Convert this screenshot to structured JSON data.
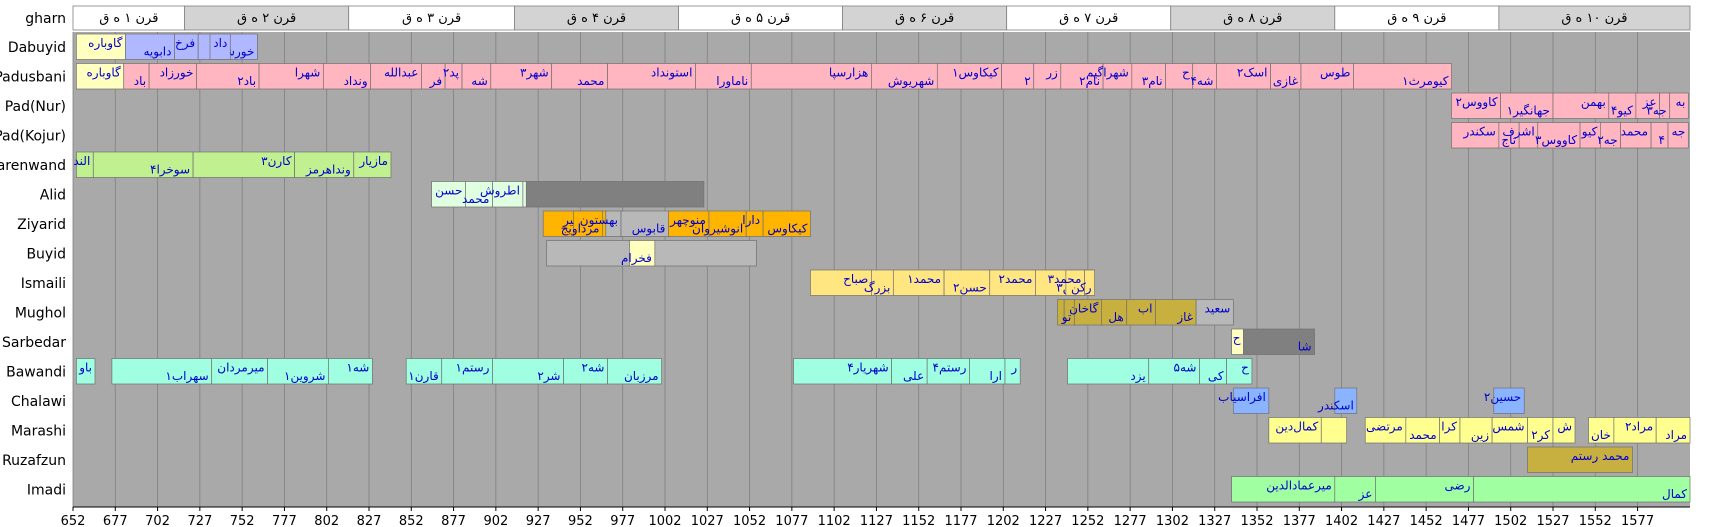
{
  "chart_data": {
    "type": "timeline",
    "title": "",
    "x_range": [
      652,
      1608
    ],
    "x_ticks": [
      652,
      677,
      702,
      727,
      752,
      777,
      802,
      827,
      852,
      877,
      902,
      927,
      952,
      977,
      1002,
      1027,
      1052,
      1077,
      1102,
      1127,
      1152,
      1177,
      1202,
      1227,
      1252,
      1277,
      1302,
      1327,
      1352,
      1377,
      1402,
      1427,
      1452,
      1477,
      1502,
      1527,
      1552,
      1577
    ],
    "header_row_label": "gharn",
    "centuries": [
      {
        "label": "قرن ۱ ه ق",
        "start": 652,
        "end": 718
      },
      {
        "label": "قرن ۲ ه ق",
        "start": 718,
        "end": 815
      },
      {
        "label": "قرن ۳ ه ق",
        "start": 815,
        "end": 913
      },
      {
        "label": "قرن ۴ ه ق",
        "start": 913,
        "end": 1010
      },
      {
        "label": "قرن ۵ ه ق",
        "start": 1010,
        "end": 1107
      },
      {
        "label": "قرن ۶ ه ق",
        "start": 1107,
        "end": 1204
      },
      {
        "label": "قرن ۷ ه ق",
        "start": 1204,
        "end": 1301
      },
      {
        "label": "قرن ۸ ه ق",
        "start": 1301,
        "end": 1398
      },
      {
        "label": "قرن ۹ ه ق",
        "start": 1398,
        "end": 1495
      },
      {
        "label": "قرن ۱۰ ه ق",
        "start": 1495,
        "end": 1608
      }
    ],
    "colors": {
      "background": "#a9a9a9",
      "header_light": "#ffffff",
      "header_dark": "#d3d3d3",
      "label_text": "#0000cd",
      "grid": "#808080"
    },
    "rows": [
      {
        "label": "Dabuyid",
        "color": "#b0b8ff",
        "segments": [
          {
            "start": 654,
            "end": 683,
            "label": "گاوباره",
            "color": "#ffffc0"
          },
          {
            "start": 683,
            "end": 712,
            "label": "دابویه"
          },
          {
            "start": 712,
            "end": 726,
            "label": "فرخ"
          },
          {
            "start": 726,
            "end": 761,
            "label": "خورشید"
          },
          {
            "start": 733,
            "end": 745,
            "label": "داد"
          }
        ]
      },
      {
        "label": "Padusbani",
        "color": "#ffb6c1",
        "segments": [
          {
            "start": 654,
            "end": 682,
            "label": "گاوباره",
            "color": "#ffffc0"
          },
          {
            "start": 682,
            "end": 697,
            "label": "باد"
          },
          {
            "start": 697,
            "end": 725,
            "label": "خورزاد"
          },
          {
            "start": 725,
            "end": 762,
            "label": "باد۲"
          },
          {
            "start": 762,
            "end": 800,
            "label": "شهرا"
          },
          {
            "start": 800,
            "end": 828,
            "label": "ونداد"
          },
          {
            "start": 828,
            "end": 858,
            "label": "عبدالله"
          },
          {
            "start": 858,
            "end": 872,
            "label": "فر"
          },
          {
            "start": 872,
            "end": 882,
            "label": "پد۲"
          },
          {
            "start": 882,
            "end": 899,
            "label": "شه"
          },
          {
            "start": 899,
            "end": 935,
            "label": "شهر۳"
          },
          {
            "start": 935,
            "end": 968,
            "label": "محمد"
          },
          {
            "start": 968,
            "end": 1020,
            "label": "استونداد"
          },
          {
            "start": 1020,
            "end": 1053,
            "label": "ناماورا"
          },
          {
            "start": 1053,
            "end": 1124,
            "label": "هزارسپا"
          },
          {
            "start": 1124,
            "end": 1163,
            "label": "شهریوش"
          },
          {
            "start": 1163,
            "end": 1201,
            "label": "کیکاوس۱"
          },
          {
            "start": 1201,
            "end": 1220,
            "label": "۲"
          },
          {
            "start": 1220,
            "end": 1236,
            "label": "زر"
          },
          {
            "start": 1236,
            "end": 1261,
            "label": "نام۲"
          },
          {
            "start": 1261,
            "end": 1278,
            "label": "شهراگیم"
          },
          {
            "start": 1278,
            "end": 1298,
            "label": "نام۳"
          },
          {
            "start": 1298,
            "end": 1314,
            "label": "ح"
          },
          {
            "start": 1314,
            "end": 1328,
            "label": "شه۴"
          },
          {
            "start": 1328,
            "end": 1360,
            "label": "اسک۲"
          },
          {
            "start": 1360,
            "end": 1378,
            "label": "غازی"
          },
          {
            "start": 1378,
            "end": 1409,
            "label": "طوس"
          },
          {
            "start": 1409,
            "end": 1467,
            "label": "کیومرث۱"
          }
        ]
      },
      {
        "label": "Pad(Nur)",
        "color": "#ffb6c1",
        "segments": [
          {
            "start": 1467,
            "end": 1496,
            "label": "کاووس۲"
          },
          {
            "start": 1496,
            "end": 1527,
            "label": "جهانگیر۱"
          },
          {
            "start": 1527,
            "end": 1560,
            "label": "بهمن"
          },
          {
            "start": 1560,
            "end": 1576,
            "label": "کیو۴"
          },
          {
            "start": 1576,
            "end": 1590,
            "label": "عز"
          },
          {
            "start": 1590,
            "end": 1596,
            "label": "جه۳"
          },
          {
            "start": 1596,
            "end": 1607,
            "label": "به"
          }
        ]
      },
      {
        "label": "Pad(Kojur)",
        "color": "#ffb6c1",
        "segments": [
          {
            "start": 1467,
            "end": 1495,
            "label": "سکندر"
          },
          {
            "start": 1495,
            "end": 1507,
            "label": "تاج"
          },
          {
            "start": 1507,
            "end": 1518,
            "label": "اشرف"
          },
          {
            "start": 1518,
            "end": 1543,
            "label": "کاووس۳"
          },
          {
            "start": 1543,
            "end": 1555,
            "label": "کیو"
          },
          {
            "start": 1555,
            "end": 1567,
            "label": "جه۲"
          },
          {
            "start": 1567,
            "end": 1585,
            "label": "محمد"
          },
          {
            "start": 1585,
            "end": 1595,
            "label": "۴"
          },
          {
            "start": 1595,
            "end": 1607,
            "label": "جه"
          }
        ]
      },
      {
        "label": "Qarenwand",
        "color": "#c0f090",
        "segments": [
          {
            "start": 654,
            "end": 664,
            "label": "الند"
          },
          {
            "start": 664,
            "end": 723,
            "label": "سوخرا۴"
          },
          {
            "start": 723,
            "end": 783,
            "label": "کارن۳"
          },
          {
            "start": 783,
            "end": 818,
            "label": "ونداهرمز"
          },
          {
            "start": 818,
            "end": 840,
            "label": "مازیار"
          }
        ]
      },
      {
        "label": "Alid",
        "color": "#e0ffe0",
        "segments": [
          {
            "start": 864,
            "end": 884,
            "label": "حسن"
          },
          {
            "start": 884,
            "end": 900,
            "label": "محمد"
          },
          {
            "start": 900,
            "end": 918,
            "label": "اطروش"
          },
          {
            "start": 918,
            "end": 920,
            "label": ""
          },
          {
            "start": 920,
            "end": 1025,
            "label": "",
            "color": "#808080"
          }
        ]
      },
      {
        "label": "Ziyarid",
        "color": "#ffb400",
        "segments": [
          {
            "start": 930,
            "end": 967,
            "label": "وشمگیر"
          },
          {
            "start": 948,
            "end": 965,
            "label": "مرداویج"
          },
          {
            "start": 967,
            "end": 976,
            "label": "بهستون",
            "color": "#b8b8b8"
          },
          {
            "start": 976,
            "end": 1004,
            "label": "قابوس",
            "color": "#b8b8b8"
          },
          {
            "start": 1004,
            "end": 1028,
            "label": "منوچهر"
          },
          {
            "start": 1028,
            "end": 1050,
            "label": "انوشیروان"
          },
          {
            "start": 1050,
            "end": 1060,
            "label": "دارا"
          },
          {
            "start": 1060,
            "end": 1088,
            "label": "کیکاوس"
          }
        ]
      },
      {
        "label": "Buyid",
        "color": "#b8b8b8",
        "segments": [
          {
            "start": 932,
            "end": 981,
            "label": ""
          },
          {
            "start": 981,
            "end": 996,
            "label": "فخرام",
            "color": "#ffffc0"
          },
          {
            "start": 996,
            "end": 1056,
            "label": ""
          }
        ]
      },
      {
        "label": "Ismaili",
        "color": "#ffe680",
        "segments": [
          {
            "start": 1088,
            "end": 1124,
            "label": "صباح"
          },
          {
            "start": 1124,
            "end": 1137,
            "label": "بزرگ"
          },
          {
            "start": 1137,
            "end": 1167,
            "label": "محمد۱"
          },
          {
            "start": 1167,
            "end": 1194,
            "label": "حسن۲"
          },
          {
            "start": 1194,
            "end": 1221,
            "label": "محمد۲"
          },
          {
            "start": 1221,
            "end": 1255,
            "label": "حسن۳"
          },
          {
            "start": 1239,
            "end": 1250,
            "label": "محمد۳"
          },
          {
            "start": 1250,
            "end": 1256,
            "label": "رکن"
          }
        ]
      },
      {
        "label": "Mughol",
        "color": "#c8b040",
        "segments": [
          {
            "start": 1234,
            "end": 1238,
            "label": ""
          },
          {
            "start": 1238,
            "end": 1244,
            "label": "تو"
          },
          {
            "start": 1244,
            "end": 1260,
            "label": "گاخان"
          },
          {
            "start": 1260,
            "end": 1275,
            "label": "هل"
          },
          {
            "start": 1275,
            "end": 1292,
            "label": "اب"
          },
          {
            "start": 1292,
            "end": 1316,
            "label": "غاز"
          },
          {
            "start": 1316,
            "end": 1338,
            "label": "سعید",
            "color": "#b8b8b8"
          }
        ]
      },
      {
        "label": "Sarbedar",
        "color": "#808080",
        "segments": [
          {
            "start": 1337,
            "end": 1344,
            "label": "ح",
            "color": "#ffffc0"
          },
          {
            "start": 1344,
            "end": 1386,
            "label": "شا"
          }
        ]
      },
      {
        "label": "Bawandi",
        "color": "#a0ffe0",
        "segments": [
          {
            "start": 654,
            "end": 665,
            "label": "باو"
          },
          {
            "start": 675,
            "end": 734,
            "label": "سهراب۱"
          },
          {
            "start": 734,
            "end": 767,
            "label": "میرمردان"
          },
          {
            "start": 767,
            "end": 803,
            "label": "شروین۱"
          },
          {
            "start": 803,
            "end": 829,
            "label": "شه۱"
          },
          {
            "start": 849,
            "end": 870,
            "label": "قارن۱"
          },
          {
            "start": 870,
            "end": 900,
            "label": "رستم۱"
          },
          {
            "start": 900,
            "end": 942,
            "label": "شر۲"
          },
          {
            "start": 942,
            "end": 968,
            "label": "شه۲"
          },
          {
            "start": 968,
            "end": 1000,
            "label": "مرزبان"
          },
          {
            "start": 1078,
            "end": 1136,
            "label": "شهریار۴"
          },
          {
            "start": 1136,
            "end": 1157,
            "label": "علی"
          },
          {
            "start": 1157,
            "end": 1182,
            "label": "رستم۴"
          },
          {
            "start": 1182,
            "end": 1203,
            "label": "ارا"
          },
          {
            "start": 1203,
            "end": 1212,
            "label": "ر"
          },
          {
            "start": 1240,
            "end": 1288,
            "label": "یزد"
          },
          {
            "start": 1288,
            "end": 1318,
            "label": "شه۵"
          },
          {
            "start": 1318,
            "end": 1334,
            "label": "کی"
          },
          {
            "start": 1334,
            "end": 1349,
            "label": "ح"
          }
        ]
      },
      {
        "label": "Chalawi",
        "color": "#8ab4ff",
        "segments": [
          {
            "start": 1338,
            "end": 1359,
            "label": "افراسیاب"
          },
          {
            "start": 1398,
            "end": 1411,
            "label": "اسکندر"
          },
          {
            "start": 1492,
            "end": 1510,
            "label": "حسین۲"
          }
        ]
      },
      {
        "label": "Marashi",
        "color": "#ffff90",
        "segments": [
          {
            "start": 1359,
            "end": 1390,
            "label": "کمال‌دین"
          },
          {
            "start": 1390,
            "end": 1405,
            "label": ""
          },
          {
            "start": 1416,
            "end": 1440,
            "label": "مرتضی"
          },
          {
            "start": 1440,
            "end": 1460,
            "label": "محمد"
          },
          {
            "start": 1460,
            "end": 1472,
            "label": "کرا"
          },
          {
            "start": 1472,
            "end": 1491,
            "label": "زین"
          },
          {
            "start": 1491,
            "end": 1512,
            "label": "شمس"
          },
          {
            "start": 1512,
            "end": 1527,
            "label": "کر۲"
          },
          {
            "start": 1527,
            "end": 1540,
            "label": "ش"
          },
          {
            "start": 1548,
            "end": 1563,
            "label": "خان"
          },
          {
            "start": 1563,
            "end": 1588,
            "label": "مراد۲"
          },
          {
            "start": 1588,
            "end": 1608,
            "label": "مراد"
          }
        ]
      },
      {
        "label": "Ruzafzun",
        "color": "#c8b040",
        "segments": [
          {
            "start": 1512,
            "end": 1574,
            "label": "محمد رستم"
          }
        ]
      },
      {
        "label": "Imadi",
        "color": "#a0ffa0",
        "segments": [
          {
            "start": 1337,
            "end": 1398,
            "label": "میرعمادالدین"
          },
          {
            "start": 1398,
            "end": 1422,
            "label": "عز"
          },
          {
            "start": 1422,
            "end": 1480,
            "label": "رضی"
          },
          {
            "start": 1480,
            "end": 1608,
            "label": "کمال"
          }
        ]
      }
    ]
  }
}
